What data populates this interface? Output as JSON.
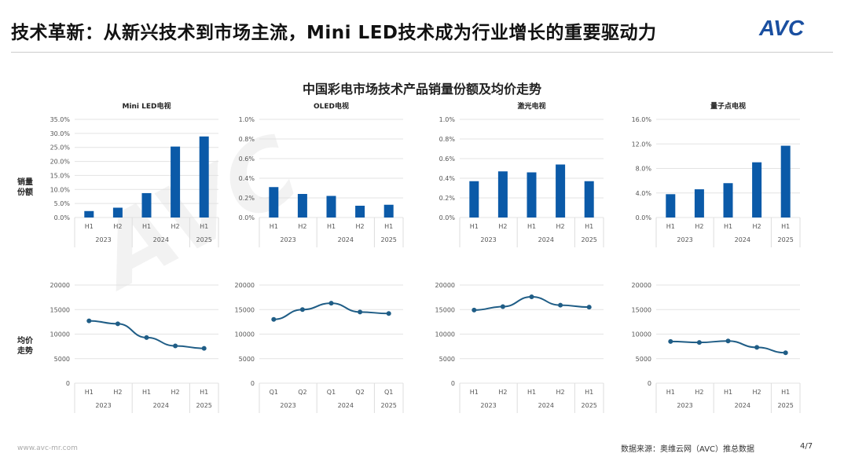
{
  "header": {
    "title": "技术革新：从新兴技术到市场主流，Mini LED技术成为行业增长的重要驱动力",
    "logo": "AVC"
  },
  "main_title": "中国彩电市场技术产品销量份额及均价走势",
  "row_labels": {
    "share": "销量份额",
    "price": "均价走势"
  },
  "watermark": "AVC 奥维云网 ALL VIEW CLOUD",
  "footer": {
    "url": "www.avc-mr.com",
    "source": "数据来源：奥维云网（AVC）推总数据",
    "page": "4/7"
  },
  "colors": {
    "bar": "#0b5aa8",
    "line": "#1f5d86",
    "grid": "#e3e3e3"
  },
  "chart_data": [
    {
      "type": "bar",
      "title": "Mini LED电视",
      "categories": [
        "H1",
        "H2",
        "H1",
        "H2",
        "H1"
      ],
      "groups": [
        "2023",
        "2024",
        "2025"
      ],
      "group_sizes": [
        2,
        2,
        1
      ],
      "values": [
        2.3,
        3.5,
        8.7,
        25.3,
        28.9
      ],
      "unit": "%",
      "ylim": [
        0,
        35
      ],
      "yticks": [
        "0.0%",
        "5.0%",
        "10.0%",
        "15.0%",
        "20.0%",
        "25.0%",
        "30.0%",
        "35.0%"
      ],
      "grid": true
    },
    {
      "type": "bar",
      "title": "OLED电视",
      "categories": [
        "H1",
        "H2",
        "H1",
        "H2",
        "H1"
      ],
      "groups": [
        "2023",
        "2024",
        "2025"
      ],
      "group_sizes": [
        2,
        2,
        1
      ],
      "values": [
        0.31,
        0.24,
        0.22,
        0.12,
        0.13
      ],
      "unit": "%",
      "ylim": [
        0,
        1
      ],
      "yticks": [
        "0.0%",
        "0.2%",
        "0.4%",
        "0.6%",
        "0.8%",
        "1.0%"
      ],
      "grid": true
    },
    {
      "type": "bar",
      "title": "激光电视",
      "categories": [
        "H1",
        "H2",
        "H1",
        "H2",
        "H1"
      ],
      "groups": [
        "2023",
        "2024",
        "2025"
      ],
      "group_sizes": [
        2,
        2,
        1
      ],
      "values": [
        0.37,
        0.47,
        0.46,
        0.54,
        0.37
      ],
      "unit": "%",
      "ylim": [
        0,
        1
      ],
      "yticks": [
        "0.0%",
        "0.2%",
        "0.4%",
        "0.6%",
        "0.8%",
        "1.0%"
      ],
      "grid": true
    },
    {
      "type": "bar",
      "title": "量子点电视",
      "categories": [
        "H1",
        "H2",
        "H1",
        "H2",
        "H1"
      ],
      "groups": [
        "2023",
        "2024",
        "2025"
      ],
      "group_sizes": [
        2,
        2,
        1
      ],
      "values": [
        3.8,
        4.6,
        5.6,
        9.0,
        11.7
      ],
      "unit": "%",
      "ylim": [
        0,
        16
      ],
      "yticks": [
        "0.0%",
        "4.0%",
        "8.0%",
        "12.0%",
        "16.0%"
      ],
      "grid": true
    },
    {
      "type": "line",
      "categories": [
        "H1",
        "H2",
        "H1",
        "H2",
        "H1"
      ],
      "groups": [
        "2023",
        "2024",
        "2025"
      ],
      "group_sizes": [
        2,
        2,
        1
      ],
      "values": [
        12700,
        12100,
        9300,
        7600,
        7100
      ],
      "ylim": [
        0,
        20000
      ],
      "yticks": [
        "0",
        "5000",
        "10000",
        "15000",
        "20000"
      ],
      "grid": true
    },
    {
      "type": "line",
      "categories": [
        "Q1",
        "Q2",
        "Q1",
        "Q2",
        "Q1"
      ],
      "groups": [
        "2023",
        "2024",
        "2025"
      ],
      "group_sizes": [
        2,
        2,
        1
      ],
      "values": [
        13000,
        15000,
        16300,
        14500,
        14200
      ],
      "ylim": [
        0,
        20000
      ],
      "yticks": [
        "0",
        "5000",
        "10000",
        "15000",
        "20000"
      ],
      "grid": true
    },
    {
      "type": "line",
      "categories": [
        "H1",
        "H2",
        "H1",
        "H2",
        "H1"
      ],
      "groups": [
        "2023",
        "2024",
        "2025"
      ],
      "group_sizes": [
        2,
        2,
        1
      ],
      "values": [
        14900,
        15600,
        17600,
        15900,
        15500
      ],
      "ylim": [
        0,
        20000
      ],
      "yticks": [
        "0",
        "5000",
        "10000",
        "15000",
        "20000"
      ],
      "grid": true
    },
    {
      "type": "line",
      "categories": [
        "H1",
        "H2",
        "H1",
        "H2",
        "H1"
      ],
      "groups": [
        "2023",
        "2024",
        "2025"
      ],
      "group_sizes": [
        2,
        2,
        1
      ],
      "values": [
        8500,
        8300,
        8600,
        7300,
        6200
      ],
      "ylim": [
        0,
        20000
      ],
      "yticks": [
        "0",
        "5000",
        "10000",
        "15000",
        "20000"
      ],
      "grid": true
    }
  ]
}
